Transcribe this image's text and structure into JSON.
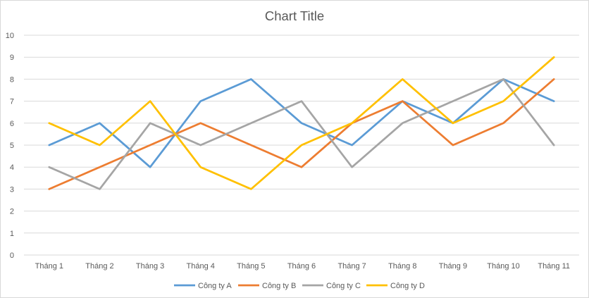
{
  "chart_data": {
    "type": "line",
    "title": "Chart Title",
    "categories": [
      "Tháng 1",
      "Tháng 2",
      "Tháng 3",
      "Tháng 4",
      "Tháng 5",
      "Tháng 6",
      "Tháng 7",
      "Tháng 8",
      "Tháng 9",
      "Tháng 10",
      "Tháng 11"
    ],
    "ylim": [
      0,
      10
    ],
    "yticks": [
      0,
      1,
      2,
      3,
      4,
      5,
      6,
      7,
      8,
      9,
      10
    ],
    "grid": true,
    "legend_position": "bottom",
    "series": [
      {
        "name": "Công ty A",
        "color": "#5B9BD5",
        "values": [
          5,
          6,
          4,
          7,
          8,
          6,
          5,
          7,
          6,
          8,
          7
        ]
      },
      {
        "name": "Công ty B",
        "color": "#ED7D31",
        "values": [
          3,
          4,
          5,
          6,
          5,
          4,
          6,
          7,
          5,
          6,
          8
        ]
      },
      {
        "name": "Công ty C",
        "color": "#A5A5A5",
        "values": [
          4,
          3,
          6,
          5,
          6,
          7,
          4,
          6,
          7,
          8,
          5
        ]
      },
      {
        "name": "Công ty D",
        "color": "#FFC000",
        "values": [
          6,
          5,
          7,
          4,
          3,
          5,
          6,
          8,
          6,
          7,
          9
        ]
      }
    ]
  }
}
